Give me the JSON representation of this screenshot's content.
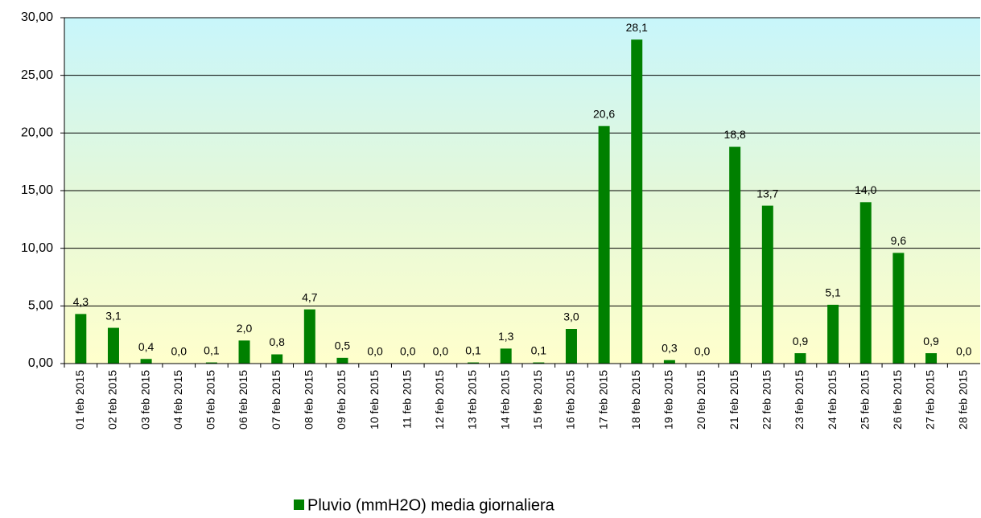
{
  "chart_data": {
    "type": "bar",
    "categories": [
      "01 feb 2015",
      "02 feb 2015",
      "03 feb 2015",
      "04 feb 2015",
      "05 feb 2015",
      "06 feb 2015",
      "07 feb 2015",
      "08 feb 2015",
      "09 feb 2015",
      "10 feb 2015",
      "11 feb 2015",
      "12 feb 2015",
      "13 feb 2015",
      "14 feb 2015",
      "15 feb 2015",
      "16 feb 2015",
      "17 feb 2015",
      "18 feb 2015",
      "19 feb 2015",
      "20 feb 2015",
      "21 feb 2015",
      "22 feb 2015",
      "23 feb 2015",
      "24 feb 2015",
      "25 feb 2015",
      "26 feb 2015",
      "27 feb 2015",
      "28 feb 2015"
    ],
    "series": [
      {
        "name": "Pluvio (mmH2O) media giornaliera",
        "color": "#008000",
        "values": [
          4.3,
          3.1,
          0.4,
          0.0,
          0.1,
          2.0,
          0.8,
          4.7,
          0.5,
          0.0,
          0.0,
          0.0,
          0.1,
          1.3,
          0.1,
          3.0,
          20.6,
          28.1,
          0.3,
          0.0,
          18.8,
          13.7,
          0.9,
          5.1,
          14.0,
          9.6,
          0.9,
          0.0
        ],
        "value_labels": [
          "4,3",
          "3,1",
          "0,4",
          "0,0",
          "0,1",
          "2,0",
          "0,8",
          "4,7",
          "0,5",
          "0,0",
          "0,0",
          "0,0",
          "0,1",
          "1,3",
          "0,1",
          "3,0",
          "20,6",
          "28,1",
          "0,3",
          "0,0",
          "18,8",
          "13,7",
          "0,9",
          "5,1",
          "14,0",
          "9,6",
          "0,9",
          "0,0"
        ]
      }
    ],
    "ylim": [
      0,
      30
    ],
    "yticks": [
      {
        "value": 0,
        "label": "0,00"
      },
      {
        "value": 5,
        "label": "5,00"
      },
      {
        "value": 10,
        "label": "10,00"
      },
      {
        "value": 15,
        "label": "15,00"
      },
      {
        "value": 20,
        "label": "20,00"
      },
      {
        "value": 25,
        "label": "25,00"
      },
      {
        "value": 30,
        "label": "30,00"
      }
    ],
    "grid": true,
    "legend": "bottom"
  }
}
